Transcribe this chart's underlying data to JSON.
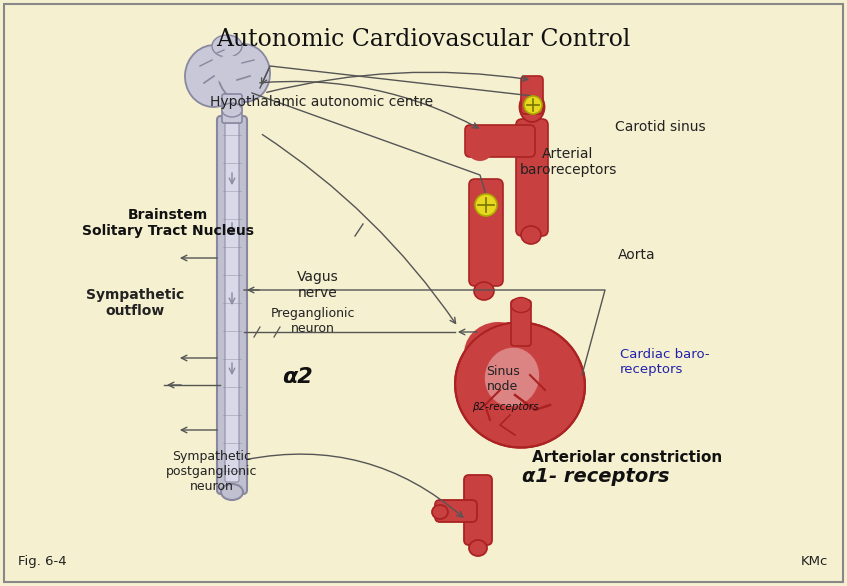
{
  "title": "Autonomic Cardiovascular Control",
  "background_color": "#f5f0d0",
  "border_color": "#888888",
  "title_fontsize": 17,
  "title_color": "#111111",
  "labels": {
    "hypothalamic": "Hypothalamic autonomic centre",
    "brainstem": "Brainstem\nSolitary Tract Nucleus",
    "sympathetic_outflow": "Sympathetic\noutflow",
    "vagus": "Vagus\nnerve",
    "preganglionic": "Preganglionic\nneuron",
    "alpha2": "α2",
    "sympathetic_post": "Sympathetic\npostganglionic\nneuron",
    "carotid": "Carotid sinus",
    "arterial_baro": "Arterial\nbaroreceptors",
    "aorta": "Aorta",
    "sinus_node": "Sinus\nnode",
    "beta2": "β2-receptors",
    "cardiac_baro": "Cardiac baro-\nreceptors",
    "arteriolar": "Arteriolar constriction",
    "alpha1": "α1- receptors",
    "fig_label": "Fig. 6-4",
    "kmc_label": "KMc"
  },
  "colors": {
    "red_organ": "#c84040",
    "red_organ_light": "#d86060",
    "red_organ_highlight": "#e8a0a0",
    "red_organ_dark": "#aa2222",
    "gray_spine": "#c0c0d0",
    "gray_spine_dark": "#8888a0",
    "gray_brain": "#c8c8d8",
    "gray_brain_dark": "#8888a0",
    "yellow_receptor": "#e8d820",
    "arrow_color": "#555555",
    "blue_text": "#2222aa",
    "black_text": "#111111",
    "dark_text": "#222222"
  }
}
